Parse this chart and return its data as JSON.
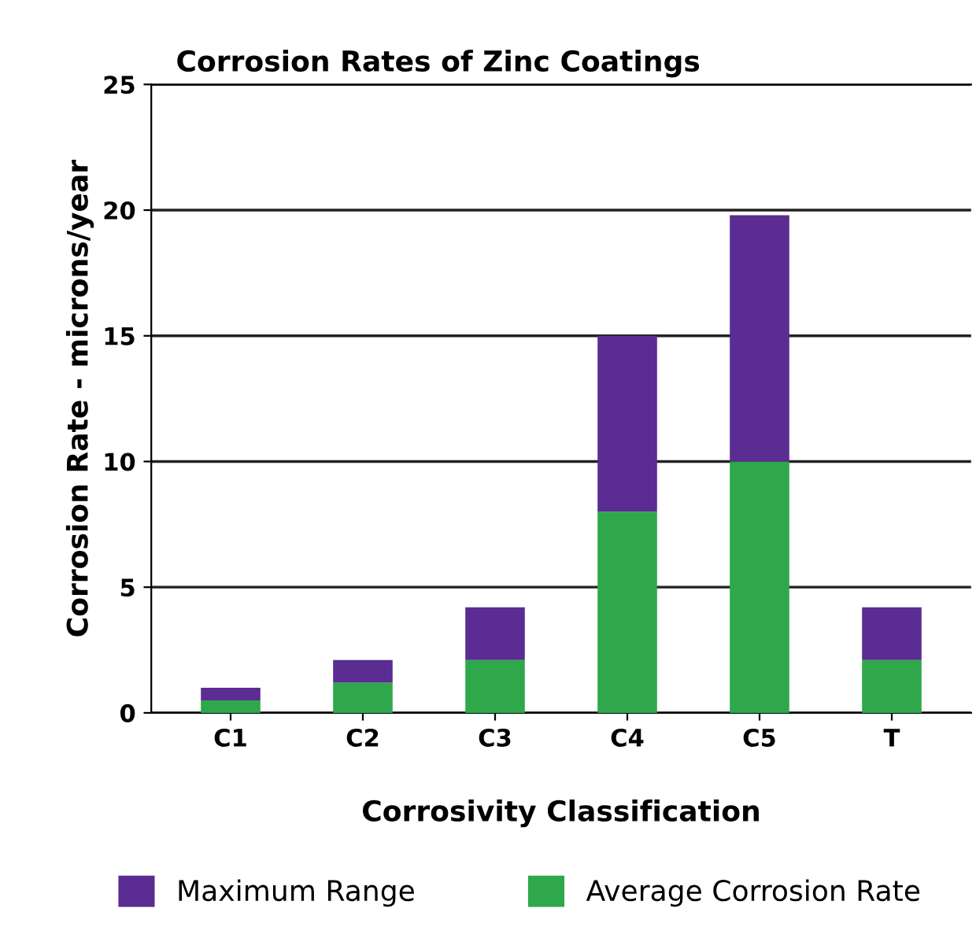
{
  "chart_data": {
    "type": "bar",
    "title": "Corrosion Rates of Zinc Coatings",
    "xlabel": "Corrosivity Classification",
    "ylabel": "Corrosion Rate - microns/year",
    "categories": [
      "C1",
      "C2",
      "C3",
      "C4",
      "C5",
      "T"
    ],
    "stacked": true,
    "series": [
      {
        "name": "Average Corrosion Rate",
        "color": "#2ea84a",
        "values": [
          0.5,
          1.2,
          2.1,
          8,
          10,
          2.1
        ]
      },
      {
        "name": "Maximum Range",
        "color": "#5b2c91",
        "values": [
          0.5,
          0.9,
          2.1,
          7,
          9.8,
          2.1
        ]
      }
    ],
    "ylim": [
      0,
      25
    ],
    "yticks": [
      0,
      5,
      10,
      15,
      20,
      25
    ],
    "grid": "y",
    "legend": "bottom"
  }
}
